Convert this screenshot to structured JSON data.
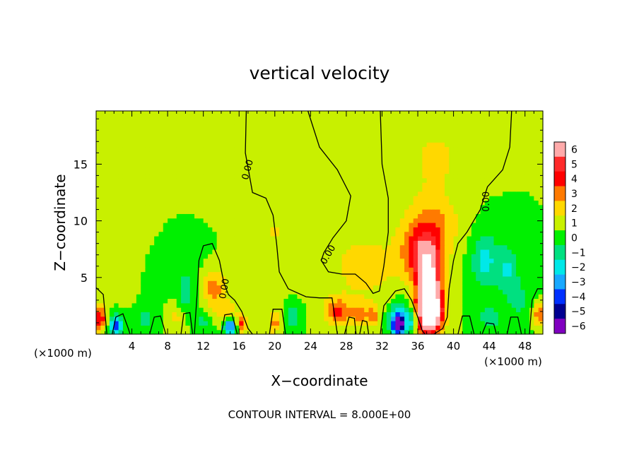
{
  "chart_data": {
    "type": "heatmap",
    "title": "vertical velocity",
    "xlabel": "X−coordinate",
    "ylabel": "Z−coordinate",
    "x_unit_left": "(×1000 m)",
    "x_unit_right": "(×1000 m)",
    "footer": "CONTOUR INTERVAL = 8.000E+00",
    "xlim": [
      0,
      50
    ],
    "ylim": [
      0,
      19.7
    ],
    "x_ticks": [
      4,
      8,
      12,
      16,
      20,
      24,
      28,
      32,
      36,
      40,
      44,
      48
    ],
    "y_ticks": [
      5,
      10,
      15
    ],
    "colorbar": {
      "levels": [
        6,
        5,
        4,
        3,
        2,
        1,
        0,
        -1,
        -2,
        -3,
        -4,
        -5,
        -6
      ],
      "labels": [
        "6",
        "5",
        "4",
        "3",
        "2",
        "1",
        "0",
        "−1",
        "−2",
        "−3",
        "−4",
        "−5",
        "−6"
      ],
      "colors": [
        "#ffaaaa",
        "#ff2a2a",
        "#ff0000",
        "#ff7a00",
        "#ffd800",
        "#c8f000",
        "#00f000",
        "#00e080",
        "#00e8e8",
        "#18a8ff",
        "#0030ff",
        "#000090",
        "#8000c0"
      ]
    },
    "contour_labels": [
      "0.00",
      "0.00",
      "0.00",
      "0.00"
    ],
    "background_value": 0.5,
    "features": [
      {
        "x": 37.3,
        "z": 3.5,
        "value": 8,
        "rx": 1.3,
        "rz": 3.0
      },
      {
        "x": 36.6,
        "z": 7.0,
        "value": 4.2,
        "rx": 2.2,
        "rz": 2.2
      },
      {
        "x": 37.3,
        "z": 1.8,
        "value": 5,
        "rx": 1.6,
        "rz": 1.6
      },
      {
        "x": 37.5,
        "z": 9.8,
        "value": 2.3,
        "rx": 3.0,
        "rz": 2.6
      },
      {
        "x": 38.0,
        "z": 15.5,
        "value": 1.3,
        "rx": 3.0,
        "rz": 3.0
      },
      {
        "x": 30.0,
        "z": 6.0,
        "value": 1.4,
        "rx": 4.5,
        "rz": 3.5
      },
      {
        "x": 27.0,
        "z": 2.0,
        "value": 3.0,
        "rx": 1.5,
        "rz": 1.2
      },
      {
        "x": 29.5,
        "z": 1.8,
        "value": 2.2,
        "rx": 0.9,
        "rz": 1.0
      },
      {
        "x": 31.0,
        "z": 1.6,
        "value": 2.3,
        "rx": 0.7,
        "rz": 1.0
      },
      {
        "x": 34.0,
        "z": 1.5,
        "value": -4.0,
        "rx": 1.2,
        "rz": 1.4
      },
      {
        "x": 33.8,
        "z": 0.8,
        "value": -6,
        "rx": 0.6,
        "rz": 0.7
      },
      {
        "x": 35.5,
        "z": 1.2,
        "value": -2.5,
        "rx": 0.6,
        "rz": 0.9
      },
      {
        "x": 13.2,
        "z": 4.0,
        "value": 2.6,
        "rx": 1.3,
        "rz": 1.8
      },
      {
        "x": 14.8,
        "z": 1.8,
        "value": 2.2,
        "rx": 1.0,
        "rz": 1.0
      },
      {
        "x": 15.0,
        "z": 0.8,
        "value": -5,
        "rx": 0.7,
        "rz": 0.8
      },
      {
        "x": 16.3,
        "z": 1.0,
        "value": 3.2,
        "rx": 0.6,
        "rz": 0.8
      },
      {
        "x": 2.2,
        "z": 0.8,
        "value": -4.5,
        "rx": 0.7,
        "rz": 0.8
      },
      {
        "x": 0.4,
        "z": 1.5,
        "value": 4.0,
        "rx": 0.7,
        "rz": 1.2
      },
      {
        "x": 20.0,
        "z": 1.0,
        "value": 2.5,
        "rx": 0.7,
        "rz": 0.9
      },
      {
        "x": 22.0,
        "z": 1.6,
        "value": -2.0,
        "rx": 0.8,
        "rz": 1.2
      },
      {
        "x": 10.0,
        "z": 3.5,
        "value": -1.5,
        "rx": 0.8,
        "rz": 1.8
      },
      {
        "x": 5.5,
        "z": 1.2,
        "value": -1.5,
        "rx": 1.0,
        "rz": 1.0
      },
      {
        "x": 9.0,
        "z": 1.5,
        "value": 1.3,
        "rx": 1.0,
        "rz": 1.2
      },
      {
        "x": 12.0,
        "z": 1.2,
        "value": -1.3,
        "rx": 0.9,
        "rz": 1.0
      },
      {
        "x": 43.5,
        "z": 6.5,
        "value": -2.3,
        "rx": 1.5,
        "rz": 2.5
      },
      {
        "x": 46.0,
        "z": 5.8,
        "value": -2.0,
        "rx": 1.2,
        "rz": 2.2
      },
      {
        "x": 44.0,
        "z": 1.5,
        "value": -1.5,
        "rx": 1.5,
        "rz": 1.2
      },
      {
        "x": 49.5,
        "z": 1.8,
        "value": 3.0,
        "rx": 0.6,
        "rz": 1.0
      },
      {
        "x": 47.5,
        "z": 3.0,
        "value": -1.2,
        "rx": 1.5,
        "rz": 2.0
      },
      {
        "x": 20.0,
        "z": 9.0,
        "value": 1.0,
        "rx": 3.0,
        "rz": 4.0
      },
      {
        "x": 3.0,
        "z": 12.0,
        "value": 0.8,
        "rx": 4.0,
        "rz": 5.0
      },
      {
        "x": 15.0,
        "z": 16.0,
        "value": 0.8,
        "rx": 5.0,
        "rz": 4.0
      },
      {
        "x": 9.0,
        "z": 6.5,
        "value": -0.6,
        "rx": 3.0,
        "rz": 3.0
      }
    ],
    "zero_contours": [
      [
        [
          16.8,
          19.7
        ],
        [
          16.7,
          16.0
        ],
        [
          17.5,
          12.5
        ],
        [
          19.0,
          12.0
        ],
        [
          19.8,
          10.5
        ],
        [
          20.2,
          8.0
        ],
        [
          20.5,
          5.5
        ],
        [
          21.5,
          4.0
        ],
        [
          23.5,
          3.3
        ],
        [
          25.0,
          3.2
        ],
        [
          26.4,
          3.2
        ],
        [
          27.0,
          0
        ]
      ],
      [
        [
          23.7,
          19.7
        ],
        [
          25.0,
          16.5
        ],
        [
          27.0,
          14.5
        ],
        [
          28.5,
          12.2
        ],
        [
          28.0,
          10.0
        ],
        [
          26.5,
          8.5
        ],
        [
          25.5,
          7.2
        ],
        [
          25.2,
          6.5
        ],
        [
          26.0,
          5.5
        ],
        [
          27.5,
          5.3
        ],
        [
          29.0,
          5.3
        ],
        [
          30.2,
          4.5
        ],
        [
          31.0,
          3.6
        ],
        [
          31.7,
          3.8
        ],
        [
          32.2,
          6.0
        ],
        [
          32.7,
          9.0
        ],
        [
          32.7,
          12.0
        ],
        [
          32.0,
          15.0
        ],
        [
          31.8,
          19.7
        ]
      ],
      [
        [
          46.5,
          19.7
        ],
        [
          46.3,
          16.5
        ],
        [
          45.5,
          14.5
        ],
        [
          43.8,
          13.0
        ],
        [
          43.0,
          11.0
        ],
        [
          41.5,
          9.0
        ],
        [
          40.5,
          8.0
        ],
        [
          40.0,
          6.5
        ],
        [
          39.5,
          4.0
        ],
        [
          39.3,
          1.5
        ],
        [
          38.8,
          0.5
        ],
        [
          37.8,
          0
        ]
      ],
      [
        [
          11.0,
          0
        ],
        [
          11.3,
          3.5
        ],
        [
          11.5,
          6.5
        ],
        [
          12.0,
          7.8
        ],
        [
          13.0,
          8.0
        ],
        [
          13.8,
          6.5
        ],
        [
          14.3,
          4.5
        ],
        [
          14.8,
          3.5
        ],
        [
          15.5,
          3.0
        ],
        [
          16.3,
          2.0
        ],
        [
          17.0,
          0.5
        ],
        [
          17.5,
          0
        ]
      ],
      [
        [
          31.8,
          0
        ],
        [
          32.2,
          2.5
        ],
        [
          33.5,
          3.8
        ],
        [
          34.5,
          4.0
        ],
        [
          35.3,
          3.0
        ],
        [
          36.0,
          1.5
        ],
        [
          36.5,
          0.3
        ],
        [
          36.8,
          0
        ]
      ],
      [
        [
          0,
          4.1
        ],
        [
          0.8,
          3.5
        ],
        [
          1.0,
          1.8
        ],
        [
          1.2,
          0
        ]
      ],
      [
        [
          1.8,
          0
        ],
        [
          2.2,
          1.5
        ],
        [
          3.0,
          1.8
        ],
        [
          3.6,
          0.5
        ],
        [
          3.8,
          0
        ]
      ],
      [
        [
          6.0,
          0
        ],
        [
          6.5,
          1.5
        ],
        [
          7.2,
          1.6
        ],
        [
          7.8,
          0
        ]
      ],
      [
        [
          9.5,
          0
        ],
        [
          9.8,
          1.8
        ],
        [
          10.5,
          1.9
        ],
        [
          10.8,
          0
        ]
      ],
      [
        [
          14.0,
          0
        ],
        [
          14.4,
          1.7
        ],
        [
          15.2,
          1.8
        ],
        [
          15.8,
          0
        ]
      ],
      [
        [
          19.4,
          0
        ],
        [
          19.8,
          2.2
        ],
        [
          20.8,
          2.2
        ],
        [
          21.2,
          0
        ]
      ],
      [
        [
          27.8,
          0
        ],
        [
          28.3,
          1.5
        ],
        [
          28.9,
          1.4
        ],
        [
          29.1,
          0
        ]
      ],
      [
        [
          29.5,
          0
        ],
        [
          29.8,
          1.2
        ],
        [
          30.3,
          1.1
        ],
        [
          30.5,
          0
        ]
      ],
      [
        [
          40.5,
          0
        ],
        [
          41.0,
          1.6
        ],
        [
          41.8,
          1.6
        ],
        [
          42.3,
          0
        ]
      ],
      [
        [
          43.2,
          0
        ],
        [
          43.7,
          1.0
        ],
        [
          44.5,
          0.9
        ],
        [
          44.8,
          0
        ]
      ],
      [
        [
          46.0,
          0
        ],
        [
          46.4,
          1.5
        ],
        [
          47.2,
          1.5
        ],
        [
          47.6,
          0
        ]
      ],
      [
        [
          48.5,
          0
        ],
        [
          48.8,
          3.0
        ],
        [
          49.4,
          4.0
        ],
        [
          50,
          4.0
        ]
      ]
    ],
    "contour_label_positions": [
      [
        17.0,
        14.5,
        -75
      ],
      [
        26.0,
        7.0,
        -60
      ],
      [
        43.7,
        11.7,
        -90
      ],
      [
        14.4,
        4.0,
        -80
      ]
    ]
  }
}
